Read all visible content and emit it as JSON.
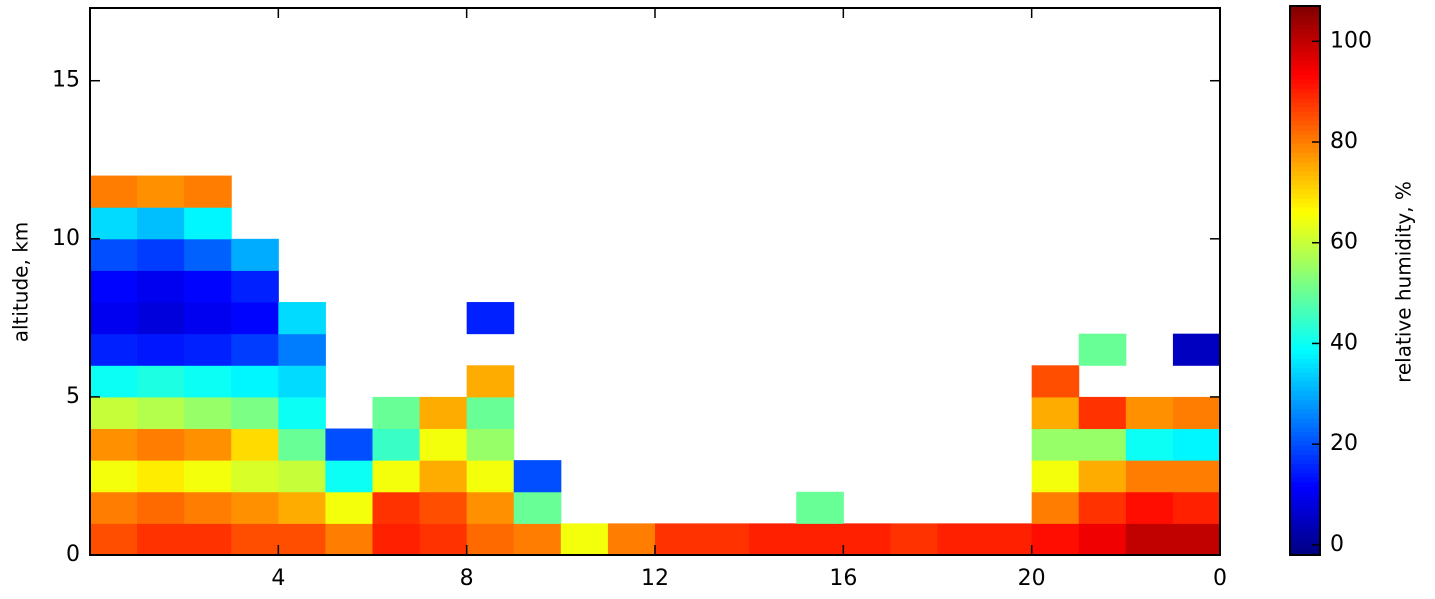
{
  "chart_data": {
    "type": "heatmap",
    "y_label": "altitude, km",
    "colorbar_label": "relative humidity, %",
    "colormap": "jet",
    "clim": [
      -2,
      107
    ],
    "cticks": [
      0,
      20,
      40,
      60,
      80,
      100
    ],
    "x_bins": [
      0,
      1,
      2,
      3,
      4,
      5,
      6,
      7,
      8,
      9,
      10,
      11,
      12,
      13,
      14,
      15,
      16,
      17,
      18,
      19,
      20,
      21,
      22,
      23,
      24
    ],
    "y_bins": [
      0,
      1,
      2,
      3,
      4,
      5,
      6,
      7,
      8,
      9,
      10,
      11,
      12,
      13,
      14,
      15,
      16,
      17
    ],
    "xlim": [
      0,
      24
    ],
    "ylim": [
      0,
      17.3
    ],
    "xticks": [
      4,
      8,
      12,
      16,
      20,
      {
        "value": 24,
        "label": "0"
      }
    ],
    "yticks": [
      0,
      5,
      10,
      15
    ],
    "z": [
      [
        85,
        80,
        65,
        78,
        60,
        40,
        15,
        10,
        12,
        20,
        35,
        80,
        null,
        null,
        null,
        null,
        null
      ],
      [
        88,
        82,
        68,
        80,
        58,
        42,
        14,
        8,
        10,
        18,
        32,
        78,
        null,
        null,
        null,
        null,
        null
      ],
      [
        88,
        80,
        65,
        78,
        55,
        40,
        15,
        10,
        12,
        22,
        38,
        80,
        null,
        null,
        null,
        null,
        null
      ],
      [
        85,
        78,
        62,
        70,
        52,
        38,
        18,
        12,
        15,
        30,
        null,
        null,
        null,
        null,
        null,
        null,
        null
      ],
      [
        85,
        75,
        60,
        50,
        40,
        35,
        25,
        35,
        null,
        null,
        null,
        null,
        null,
        null,
        null,
        null,
        null
      ],
      [
        80,
        65,
        40,
        20,
        null,
        null,
        null,
        null,
        null,
        null,
        null,
        null,
        null,
        null,
        null,
        null,
        null
      ],
      [
        90,
        88,
        65,
        45,
        50,
        null,
        null,
        null,
        null,
        null,
        null,
        null,
        null,
        null,
        null,
        null,
        null
      ],
      [
        88,
        85,
        75,
        65,
        75,
        null,
        null,
        null,
        null,
        null,
        null,
        null,
        null,
        null,
        null,
        null,
        null
      ],
      [
        82,
        78,
        65,
        55,
        50,
        75,
        null,
        15,
        null,
        null,
        null,
        null,
        null,
        null,
        null,
        null,
        null
      ],
      [
        80,
        50,
        20,
        null,
        null,
        null,
        null,
        null,
        null,
        null,
        null,
        null,
        null,
        null,
        null,
        null,
        null
      ],
      [
        65,
        null,
        null,
        null,
        null,
        null,
        null,
        null,
        null,
        null,
        null,
        null,
        null,
        null,
        null,
        null,
        null
      ],
      [
        80,
        null,
        null,
        null,
        null,
        null,
        null,
        null,
        null,
        null,
        null,
        null,
        null,
        null,
        null,
        null,
        null
      ],
      [
        88,
        null,
        null,
        null,
        null,
        null,
        null,
        null,
        null,
        null,
        null,
        null,
        null,
        null,
        null,
        null,
        null
      ],
      [
        88,
        null,
        null,
        null,
        null,
        null,
        null,
        null,
        null,
        null,
        null,
        null,
        null,
        null,
        null,
        null,
        null
      ],
      [
        90,
        null,
        null,
        null,
        null,
        null,
        null,
        null,
        null,
        null,
        null,
        null,
        null,
        null,
        null,
        null,
        null
      ],
      [
        90,
        50,
        null,
        null,
        null,
        null,
        null,
        null,
        null,
        null,
        null,
        null,
        null,
        null,
        null,
        null,
        null
      ],
      [
        90,
        null,
        null,
        null,
        null,
        null,
        null,
        null,
        null,
        null,
        null,
        null,
        null,
        null,
        null,
        null,
        null
      ],
      [
        88,
        null,
        null,
        null,
        null,
        null,
        null,
        null,
        null,
        null,
        null,
        null,
        null,
        null,
        null,
        null,
        null
      ],
      [
        90,
        null,
        null,
        null,
        null,
        null,
        null,
        null,
        null,
        null,
        null,
        null,
        null,
        null,
        null,
        null,
        null
      ],
      [
        90,
        null,
        null,
        null,
        null,
        null,
        null,
        null,
        null,
        null,
        null,
        null,
        null,
        null,
        null,
        null,
        null
      ],
      [
        92,
        80,
        65,
        55,
        75,
        85,
        null,
        null,
        null,
        null,
        null,
        null,
        null,
        null,
        null,
        null,
        null
      ],
      [
        95,
        88,
        75,
        55,
        88,
        null,
        50,
        null,
        null,
        null,
        null,
        null,
        null,
        null,
        null,
        null,
        null
      ],
      [
        100,
        92,
        80,
        40,
        78,
        null,
        null,
        null,
        null,
        null,
        null,
        null,
        null,
        null,
        null,
        null,
        null
      ],
      [
        100,
        90,
        80,
        38,
        80,
        null,
        5,
        null,
        null,
        null,
        null,
        null,
        null,
        null,
        null,
        null,
        null
      ]
    ]
  }
}
